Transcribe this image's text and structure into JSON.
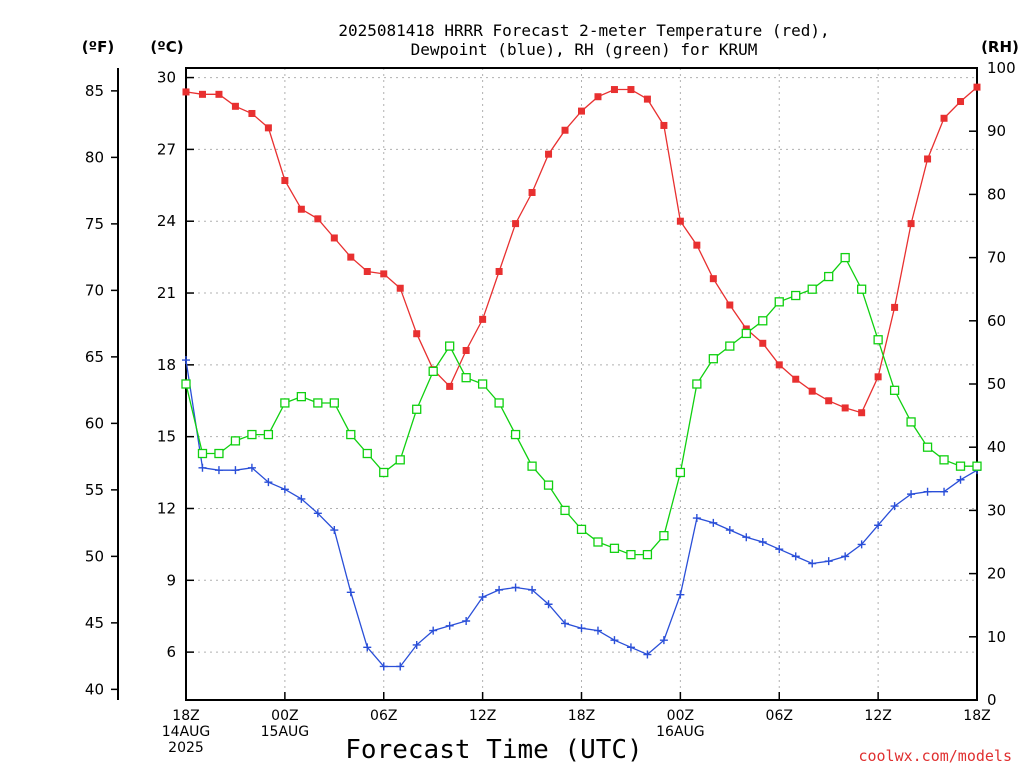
{
  "chart_data": {
    "type": "line",
    "title": "2025081418 HRRR Forecast 2-meter Temperature (red),",
    "subtitle": "Dewpoint (blue), RH (green) for KRUM",
    "xlabel": "Forecast Time (UTC)",
    "credit": "coolwx.com/models",
    "units": {
      "fahrenheit": "(ºF)",
      "celsius": "(ºC)",
      "rh": "(RH)"
    },
    "x_hours": [
      0,
      1,
      2,
      3,
      4,
      5,
      6,
      7,
      8,
      9,
      10,
      11,
      12,
      13,
      14,
      15,
      16,
      17,
      18,
      19,
      20,
      21,
      22,
      23,
      24,
      25,
      26,
      27,
      28,
      29,
      30,
      31,
      32,
      33,
      34,
      35,
      36,
      37,
      38,
      39,
      40,
      41,
      42,
      43,
      44,
      45,
      46,
      47,
      48
    ],
    "x_ticks": [
      {
        "hour": 0,
        "lines": [
          "18Z",
          "14AUG",
          "2025"
        ]
      },
      {
        "hour": 6,
        "lines": [
          "00Z",
          "15AUG"
        ]
      },
      {
        "hour": 12,
        "lines": [
          "06Z"
        ]
      },
      {
        "hour": 18,
        "lines": [
          "12Z"
        ]
      },
      {
        "hour": 24,
        "lines": [
          "18Z"
        ]
      },
      {
        "hour": 30,
        "lines": [
          "00Z",
          "16AUG"
        ]
      },
      {
        "hour": 36,
        "lines": [
          "06Z"
        ]
      },
      {
        "hour": 42,
        "lines": [
          "12Z"
        ]
      },
      {
        "hour": 48,
        "lines": [
          "18Z"
        ]
      }
    ],
    "y_celsius": {
      "range": [
        4.0,
        30.4
      ],
      "ticks": [
        6,
        9,
        12,
        15,
        18,
        21,
        24,
        27,
        30
      ]
    },
    "y_fahrenheit": {
      "ticks": [
        40,
        45,
        50,
        55,
        60,
        65,
        70,
        75,
        80,
        85
      ]
    },
    "y_rh": {
      "range": [
        0,
        100
      ],
      "ticks": [
        0,
        10,
        20,
        30,
        40,
        50,
        60,
        70,
        80,
        90,
        100
      ]
    },
    "grid": true,
    "series": [
      {
        "name": "Temperature",
        "axis": "celsius",
        "color": "#e83030",
        "marker": "filled-square",
        "values": [
          29.4,
          29.3,
          29.3,
          28.8,
          28.5,
          27.9,
          25.7,
          24.5,
          24.1,
          23.3,
          22.5,
          21.9,
          21.8,
          21.2,
          19.3,
          17.8,
          17.1,
          18.6,
          19.9,
          21.9,
          23.9,
          25.2,
          26.8,
          27.8,
          28.6,
          29.2,
          29.5,
          29.5,
          29.1,
          28.0,
          24.0,
          23.0,
          21.6,
          20.5,
          19.5,
          18.9,
          18.0,
          17.4,
          16.9,
          16.5,
          16.2,
          16.0,
          17.5,
          20.4,
          23.9,
          26.6,
          28.3,
          29.0,
          29.6
        ]
      },
      {
        "name": "Dewpoint",
        "axis": "celsius",
        "color": "#2a4fd8",
        "marker": "plus",
        "values": [
          18.2,
          13.7,
          13.6,
          13.6,
          13.7,
          13.1,
          12.8,
          12.4,
          11.8,
          11.1,
          8.5,
          6.2,
          5.4,
          5.4,
          6.3,
          6.9,
          7.1,
          7.3,
          8.3,
          8.6,
          8.7,
          8.6,
          8.0,
          7.2,
          7.0,
          6.9,
          6.5,
          6.2,
          5.9,
          6.5,
          8.4,
          11.6,
          11.4,
          11.1,
          10.8,
          10.6,
          10.3,
          10.0,
          9.7,
          9.8,
          10.0,
          10.5,
          11.3,
          12.1,
          12.6,
          12.7,
          12.7,
          13.2,
          13.6
        ]
      },
      {
        "name": "RH",
        "axis": "rh",
        "color": "#10d010",
        "marker": "open-square",
        "values": [
          50,
          39,
          39,
          41,
          42,
          42,
          47,
          48,
          47,
          47,
          42,
          39,
          36,
          38,
          46,
          52,
          56,
          51,
          50,
          47,
          42,
          37,
          34,
          30,
          27,
          25,
          24,
          23,
          23,
          26,
          36,
          50,
          54,
          56,
          58,
          60,
          63,
          64,
          65,
          67,
          70,
          65,
          57,
          49,
          44,
          40,
          38,
          37,
          37
        ]
      }
    ]
  }
}
